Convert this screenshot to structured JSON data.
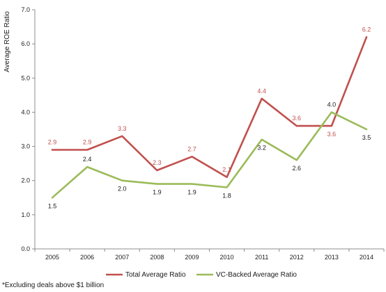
{
  "chart_data": {
    "type": "line",
    "categories": [
      "2005",
      "2006",
      "2007",
      "2008",
      "2009",
      "2010",
      "2011",
      "2012",
      "2013",
      "2014"
    ],
    "series": [
      {
        "name": "Total Average Ratio",
        "color": "#c0504d",
        "values": [
          2.9,
          2.9,
          3.3,
          2.3,
          2.7,
          2.1,
          4.4,
          3.6,
          3.6,
          6.2
        ],
        "labels": [
          "2.9",
          "2.9",
          "3.3",
          "2.3",
          "2.7",
          "2.1",
          "4.4",
          "3.6",
          "3.6",
          "6.2"
        ]
      },
      {
        "name": "VC-Backed Average Ratio",
        "color": "#9bbb59",
        "values": [
          1.5,
          2.4,
          2.0,
          1.9,
          1.9,
          1.8,
          3.2,
          2.6,
          4.0,
          3.5
        ],
        "labels": [
          "1.5",
          "2.4",
          "2.0",
          "1.9",
          "1.9",
          "1.8",
          "3.2",
          "2.6",
          "4.0",
          "3.5"
        ]
      }
    ],
    "ylabel": "Average ROE Ratio",
    "ylim": [
      0,
      7
    ],
    "yticks": [
      "0.0",
      "1.0",
      "2.0",
      "3.0",
      "4.0",
      "5.0",
      "6.0",
      "7.0"
    ],
    "grid": false,
    "legend_position": "bottom"
  },
  "footnote": "*Excluding deals above $1 billion"
}
